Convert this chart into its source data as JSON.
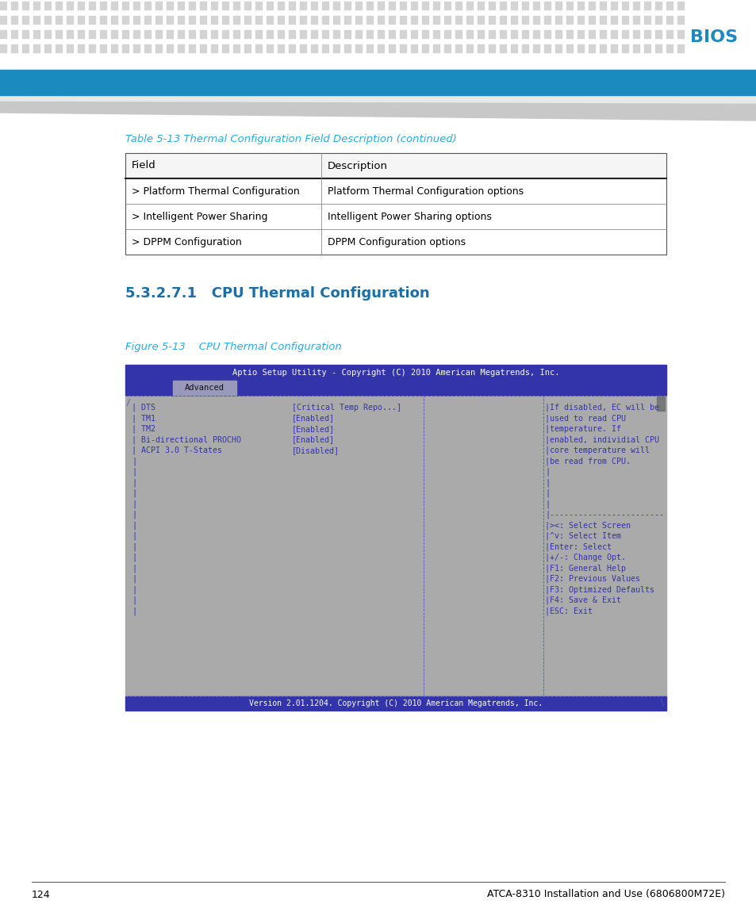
{
  "page_bg": "#ffffff",
  "header_dot_color": "#d4d4d4",
  "header_blue_bar_color": "#1a8abf",
  "header_bios_text": "BIOS",
  "header_bios_color": "#1a8abf",
  "table_title": "Table 5-13 Thermal Configuration Field Description (continued)",
  "table_title_color": "#29abe2",
  "section_heading": "5.3.2.7.1   CPU Thermal Configuration",
  "section_heading_color": "#1a6fa8",
  "figure_caption": "Figure 5-13    CPU Thermal Configuration",
  "figure_caption_color": "#29abe2",
  "table_headers": [
    "Field",
    "Description"
  ],
  "table_rows": [
    [
      "> Platform Thermal Configuration",
      "Platform Thermal Configuration options"
    ],
    [
      "> Intelligent Power Sharing",
      "Intelligent Power Sharing options"
    ],
    [
      "> DPPM Configuration",
      "DPPM Configuration options"
    ]
  ],
  "bios_screen_title": "Aptio Setup Utility - Copyright (C) 2010 American Megatrends, Inc.",
  "bios_screen_tab": "Advanced",
  "bios_title_bg": "#3333aa",
  "bios_tab_row_bg": "#3333aa",
  "bios_tab_box_bg": "#8888bb",
  "bios_body_bg": "#aaaaaa",
  "bios_text_color": "#3333aa",
  "bios_title_text_color": "#ffffff",
  "bios_footer_bg": "#3333aa",
  "bios_left_col": [
    "DTS",
    "TM1",
    "TM2",
    "Bi-directional PROCHO",
    "ACPI 3.0 T-States"
  ],
  "bios_mid_col": [
    "[Critical Temp Repo...]",
    "[Enabled]",
    "[Enabled]",
    "[Enabled]",
    "[Disabled]"
  ],
  "bios_right_lines": [
    "|If disabled, EC will be",
    "|used to read CPU",
    "|temperature. If",
    "|enabled, individial CPU",
    "|core temperature will",
    "|be read from CPU.",
    "|",
    "|",
    "|",
    "|",
    "|------------------------",
    "|><: Select Screen",
    "|^v: Select Item",
    "|Enter: Select",
    "|+/-: Change Opt.",
    "|F1: General Help",
    "|F2: Previous Values",
    "|F3: Optimized Defaults",
    "|F4: Save & Exit",
    "|ESC: Exit"
  ],
  "bios_footer": "Version 2.01.1204. Copyright (C) 2010 American Megatrends, Inc.",
  "footer_page": "124",
  "footer_text": "ATCA-8310 Installation and Use (6806800M72E)"
}
